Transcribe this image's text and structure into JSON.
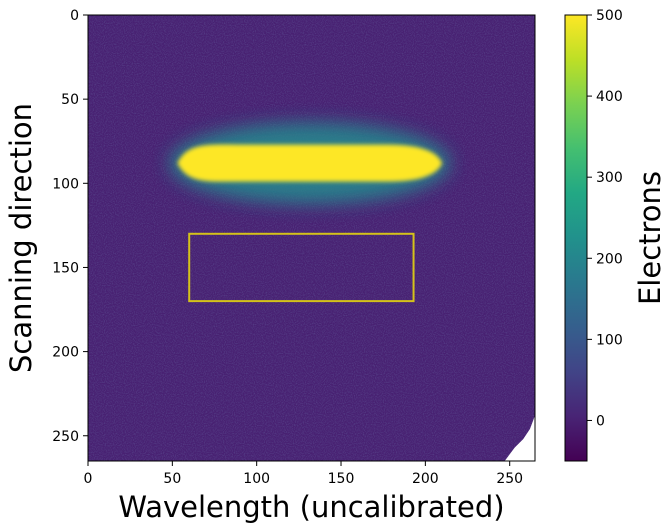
{
  "chart_data": {
    "type": "heatmap",
    "title": "",
    "xlabel": "Wavelength (uncalibrated)",
    "ylabel": "Scanning direction",
    "xlim": [
      0,
      265
    ],
    "ylim": [
      265,
      0
    ],
    "x_ticks": [
      0,
      50,
      100,
      150,
      200,
      250
    ],
    "y_ticks": [
      0,
      50,
      100,
      150,
      200,
      250
    ],
    "colormap": "viridis",
    "colorbar": {
      "label": "Electrons",
      "range": [
        -50,
        500
      ],
      "ticks": [
        0,
        100,
        200,
        300,
        400,
        500
      ]
    },
    "background_level": 0,
    "bright_spectrum": {
      "x_range": [
        53,
        210
      ],
      "y_center": 88,
      "half_height": 11,
      "level": 500
    },
    "highlight_box": {
      "x_range": [
        60,
        193
      ],
      "y_range": [
        130,
        170
      ],
      "color": "#d4c21a"
    },
    "masked_corner": "bottom-right"
  }
}
